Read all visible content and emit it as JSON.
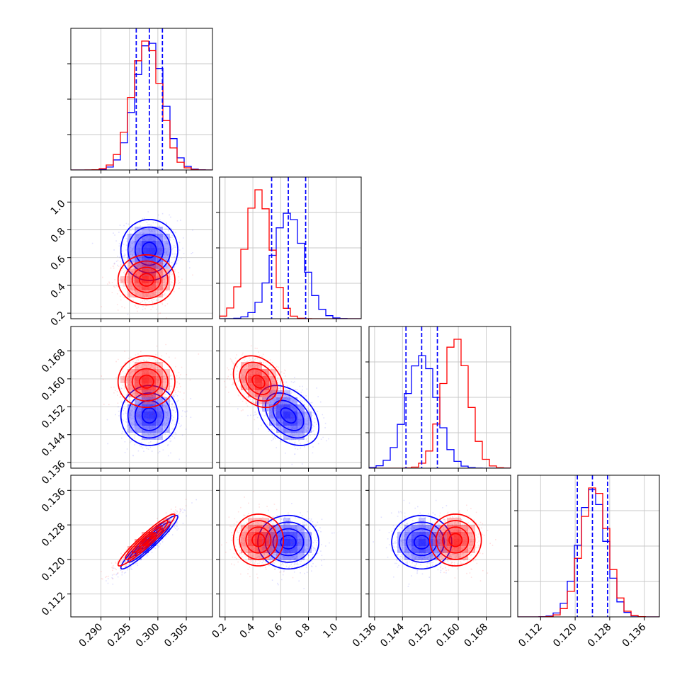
{
  "chart_data": {
    "type": "corner",
    "parameters": [
      {
        "key": "p0",
        "range": [
          0.2847,
          0.3096
        ],
        "ticks": [
          0.29,
          0.295,
          0.3,
          0.305
        ],
        "tick_labels": [
          "0.290",
          "0.295",
          "0.300",
          "0.305"
        ]
      },
      {
        "key": "p1",
        "range": [
          0.16,
          1.18
        ],
        "ticks": [
          0.2,
          0.4,
          0.6,
          0.8,
          1.0
        ],
        "tick_labels": [
          "0.2",
          "0.4",
          "0.6",
          "0.8",
          "1.0"
        ]
      },
      {
        "key": "p2",
        "range": [
          0.1344,
          0.175
        ],
        "ticks": [
          0.136,
          0.144,
          0.152,
          0.16,
          0.168
        ],
        "tick_labels": [
          "0.136",
          "0.144",
          "0.152",
          "0.160",
          "0.168"
        ]
      },
      {
        "key": "p3",
        "range": [
          0.1067,
          0.1395
        ],
        "ticks": [
          0.112,
          0.12,
          0.128,
          0.136
        ],
        "tick_labels": [
          "0.112",
          "0.120",
          "0.128",
          "0.136"
        ]
      }
    ],
    "series": [
      {
        "color": "#0000ff",
        "mean": [
          0.2985,
          0.655,
          0.1495,
          0.124
        ],
        "sigma": [
          0.0025,
          0.11,
          0.0043,
          0.0031
        ],
        "correlation": [
          [
            1,
            0,
            0,
            0.95
          ],
          [
            0,
            1,
            -0.4,
            0
          ],
          [
            0,
            -0.4,
            1,
            0
          ],
          [
            0.95,
            0,
            0,
            1
          ]
        ],
        "quantiles": [
          [
            0.2962,
            0.2985,
            0.3008
          ],
          [
            0.535,
            0.655,
            0.78
          ],
          [
            0.145,
            0.1495,
            0.154
          ],
          [
            0.1205,
            0.124,
            0.1275
          ]
        ]
      },
      {
        "color": "#ff0000",
        "mean": [
          0.298,
          0.44,
          0.1592,
          0.1245
        ],
        "sigma": [
          0.0025,
          0.09,
          0.0037,
          0.003
        ],
        "correlation": [
          [
            1,
            0,
            0,
            0.95
          ],
          [
            0,
            1,
            -0.3,
            0
          ],
          [
            0,
            -0.3,
            1,
            0
          ],
          [
            0.95,
            0,
            0,
            1
          ]
        ],
        "quantiles": null
      }
    ],
    "histogram_bins": 20,
    "contour_levels_sigma": [
      0.5,
      1.0,
      1.5,
      2.0
    ],
    "grid": true,
    "legend": "none"
  }
}
